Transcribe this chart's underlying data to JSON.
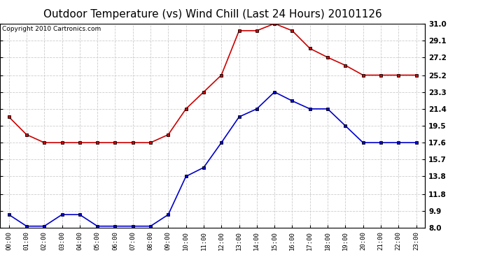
{
  "title": "Outdoor Temperature (vs) Wind Chill (Last 24 Hours) 20101126",
  "copyright": "Copyright 2010 Cartronics.com",
  "x_labels": [
    "00:00",
    "01:00",
    "02:00",
    "03:00",
    "04:00",
    "05:00",
    "06:00",
    "07:00",
    "08:00",
    "09:00",
    "10:00",
    "11:00",
    "12:00",
    "13:00",
    "14:00",
    "15:00",
    "16:00",
    "17:00",
    "18:00",
    "19:00",
    "20:00",
    "21:00",
    "22:00",
    "23:00"
  ],
  "y_ticks": [
    8.0,
    9.9,
    11.8,
    13.8,
    15.7,
    17.6,
    19.5,
    21.4,
    23.3,
    25.2,
    27.2,
    29.1,
    31.0
  ],
  "ylim": [
    8.0,
    31.0
  ],
  "temp_red": [
    20.5,
    18.5,
    17.6,
    17.6,
    17.6,
    17.6,
    17.6,
    17.6,
    17.6,
    18.5,
    21.4,
    23.3,
    25.2,
    30.2,
    30.2,
    31.0,
    30.2,
    28.2,
    27.2,
    26.3,
    25.2,
    25.2,
    25.2,
    25.2
  ],
  "wind_blue": [
    9.5,
    8.2,
    8.2,
    9.5,
    9.5,
    8.2,
    8.2,
    8.2,
    8.2,
    9.5,
    13.8,
    14.8,
    17.6,
    20.5,
    21.4,
    23.3,
    22.3,
    21.4,
    21.4,
    19.5,
    17.6,
    17.6,
    17.6,
    17.6
  ],
  "line_color_red": "#cc0000",
  "line_color_blue": "#0000cc",
  "marker_color": "#000000",
  "background_color": "#ffffff",
  "grid_color": "#cccccc",
  "title_fontsize": 11,
  "copyright_fontsize": 6.5
}
